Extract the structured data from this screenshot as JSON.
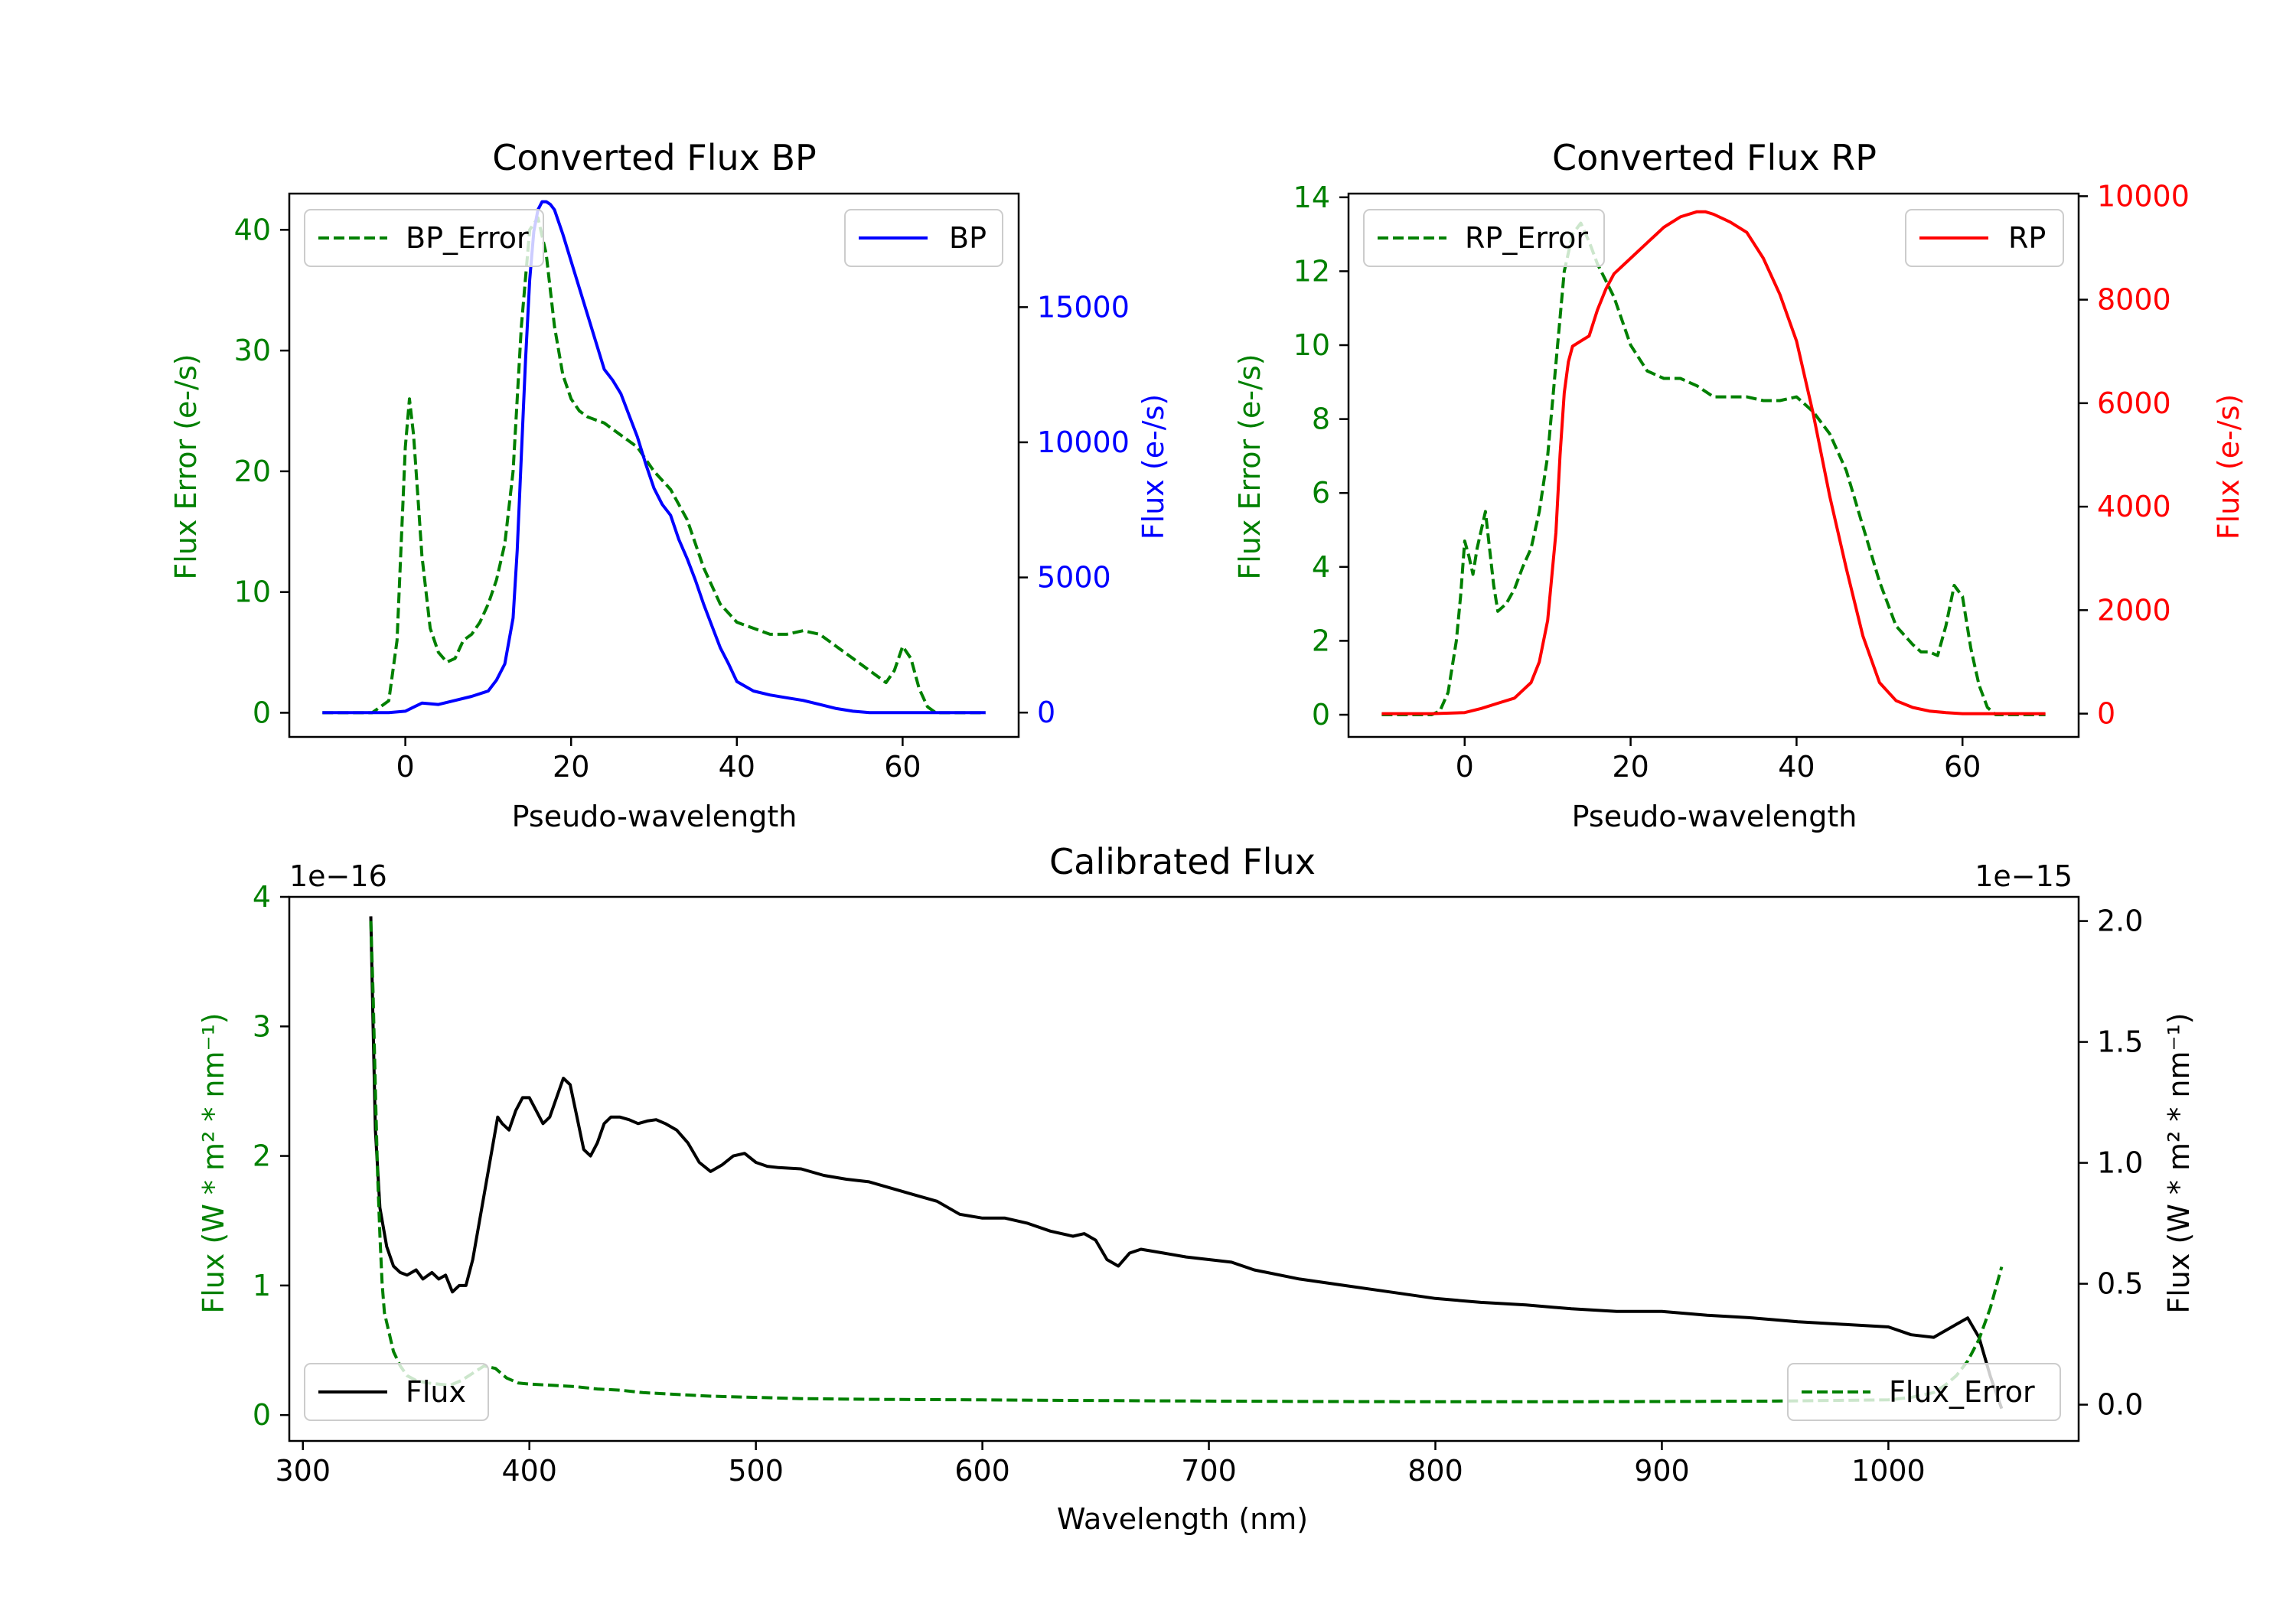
{
  "figure": {
    "panels": {
      "bp": {
        "title": "Converted Flux BP",
        "xlabel": "Pseudo-wavelength",
        "ylabel_left": "Flux Error (e-/s)",
        "ylabel_right": "Flux (e-/s)",
        "legend_left": "BP_Error",
        "legend_right": "BP"
      },
      "rp": {
        "title": "Converted Flux RP",
        "xlabel": "Pseudo-wavelength",
        "ylabel_left": "Flux Error (e-/s)",
        "ylabel_right": "Flux (e-/s)",
        "legend_left": "RP_Error",
        "legend_right": "RP"
      },
      "cal": {
        "title": "Calibrated Flux",
        "xlabel": "Wavelength (nm)",
        "ylabel_left": "Flux (W * m² * nm⁻¹)",
        "ylabel_right": "Flux (W * m² * nm⁻¹)",
        "offset_left": "1e−16",
        "offset_right": "1e−15",
        "legend_left": "Flux",
        "legend_right": "Flux_Error"
      }
    },
    "colors": {
      "bp_flux": "#0000ff",
      "rp_flux": "#ff0000",
      "error": "#008000",
      "cal_flux": "#000000",
      "axis": "#000000"
    }
  },
  "chart_data": [
    {
      "id": "bp",
      "type": "line",
      "title": "Converted Flux BP",
      "xlabel": "Pseudo-wavelength",
      "xlim": [
        -14,
        74
      ],
      "xticks": [
        0,
        20,
        40,
        60
      ],
      "y_left": {
        "label": "Flux Error (e-/s)",
        "lim": [
          -2,
          43
        ],
        "ticks": [
          0,
          10,
          20,
          30,
          40
        ],
        "tick_labels": [
          "0",
          "10",
          "20",
          "30",
          "40"
        ]
      },
      "y_right": {
        "label": "Flux (e-/s)",
        "lim": [
          -900,
          19200
        ],
        "ticks": [
          0,
          5000,
          10000,
          15000
        ],
        "tick_labels": [
          "0",
          "5000",
          "10000",
          "15000"
        ]
      },
      "series": [
        {
          "name": "BP_Error",
          "axis": "left",
          "style": "dashed",
          "color": "#008000",
          "x": [
            -10,
            -6,
            -4,
            -2,
            -1,
            0,
            0.5,
            1,
            1.5,
            2,
            3,
            4,
            5,
            6,
            7,
            8,
            9,
            10,
            11,
            12,
            13,
            14,
            15,
            16,
            17,
            18,
            19,
            20,
            21,
            22,
            24,
            26,
            28,
            30,
            32,
            34,
            36,
            38,
            40,
            42,
            44,
            46,
            48,
            50,
            52,
            54,
            56,
            58,
            59,
            60,
            61,
            62,
            63,
            64,
            66,
            68,
            70
          ],
          "y": [
            0,
            0,
            0,
            1,
            6,
            22,
            26,
            23,
            18,
            13,
            7,
            5,
            4.2,
            4.5,
            6,
            6.5,
            7.5,
            9,
            11,
            14,
            20,
            32,
            40,
            41,
            38,
            32,
            28,
            26,
            25,
            24.5,
            24,
            23,
            22,
            20,
            18.5,
            16,
            12,
            9,
            7.5,
            7,
            6.5,
            6.5,
            6.8,
            6.5,
            5.5,
            4.5,
            3.5,
            2.5,
            3.5,
            5.5,
            4.5,
            2,
            0.5,
            0,
            0,
            0,
            0
          ]
        },
        {
          "name": "BP",
          "axis": "right",
          "style": "solid",
          "color": "#0000ff",
          "x": [
            -10,
            -4,
            -2,
            0,
            1,
            2,
            4,
            6,
            8,
            10,
            11,
            12,
            13,
            13.5,
            14,
            14.5,
            15,
            15.5,
            16,
            16.5,
            17,
            17.5,
            18,
            19,
            20,
            22,
            24,
            25,
            26,
            27,
            28,
            29,
            30,
            31,
            32,
            33,
            34,
            35,
            36,
            37,
            38,
            39,
            40,
            42,
            44,
            46,
            48,
            50,
            52,
            54,
            56,
            58,
            60,
            62,
            64,
            66,
            68,
            70
          ],
          "y": [
            0,
            0,
            0,
            50,
            200,
            350,
            300,
            450,
            600,
            800,
            1200,
            1800,
            3500,
            6000,
            9500,
            13000,
            16000,
            17800,
            18600,
            18900,
            18900,
            18800,
            18600,
            17700,
            16700,
            14700,
            12700,
            12300,
            11800,
            11000,
            10200,
            9200,
            8300,
            7700,
            7300,
            6400,
            5700,
            4900,
            4000,
            3200,
            2400,
            1800,
            1150,
            800,
            650,
            550,
            450,
            300,
            150,
            50,
            0,
            0,
            0,
            0,
            0,
            0,
            0,
            0
          ]
        }
      ]
    },
    {
      "id": "rp",
      "type": "line",
      "title": "Converted Flux RP",
      "xlabel": "Pseudo-wavelength",
      "xlim": [
        -14,
        74
      ],
      "xticks": [
        0,
        20,
        40,
        60
      ],
      "y_left": {
        "label": "Flux Error (e-/s)",
        "lim": [
          -0.6,
          14.1
        ],
        "ticks": [
          0,
          2,
          4,
          6,
          8,
          10,
          12,
          14
        ],
        "tick_labels": [
          "0",
          "2",
          "4",
          "6",
          "8",
          "10",
          "12",
          "14"
        ]
      },
      "y_right": {
        "label": "Flux (e-/s)",
        "lim": [
          -450,
          10050
        ],
        "ticks": [
          0,
          2000,
          4000,
          6000,
          8000,
          10000
        ],
        "tick_labels": [
          "0",
          "2000",
          "4000",
          "6000",
          "8000",
          "10000"
        ]
      },
      "series": [
        {
          "name": "RP_Error",
          "axis": "left",
          "style": "dashed",
          "color": "#008000",
          "x": [
            -10,
            -5,
            -4,
            -3,
            -2,
            -1,
            -0.5,
            0,
            0.5,
            1,
            1.5,
            2,
            2.5,
            3,
            3.5,
            4,
            5,
            6,
            7,
            8,
            9,
            10,
            11,
            12,
            13,
            14,
            15,
            16,
            18,
            20,
            22,
            24,
            26,
            28,
            30,
            32,
            34,
            36,
            38,
            40,
            42,
            44,
            46,
            48,
            50,
            52,
            54,
            55,
            56,
            57,
            58,
            59,
            60,
            61,
            62,
            63,
            64,
            66,
            68,
            70
          ],
          "y": [
            0,
            0,
            0,
            0.1,
            0.6,
            2,
            3.2,
            4.7,
            4.3,
            3.8,
            4.5,
            5.0,
            5.5,
            4.5,
            3.5,
            2.8,
            3.0,
            3.4,
            4.0,
            4.5,
            5.5,
            7.0,
            9.5,
            12,
            13,
            13.3,
            12.8,
            12.2,
            11.3,
            10.0,
            9.3,
            9.1,
            9.1,
            8.9,
            8.6,
            8.6,
            8.6,
            8.5,
            8.5,
            8.6,
            8.2,
            7.6,
            6.6,
            5.1,
            3.6,
            2.4,
            1.9,
            1.7,
            1.7,
            1.6,
            2.4,
            3.5,
            3.2,
            1.8,
            0.8,
            0.2,
            0,
            0,
            0,
            0
          ]
        },
        {
          "name": "RP",
          "axis": "right",
          "style": "solid",
          "color": "#ff0000",
          "x": [
            -10,
            -4,
            0,
            2,
            4,
            6,
            8,
            9,
            10,
            11,
            11.5,
            12,
            12.5,
            13,
            14,
            15,
            16,
            17,
            18,
            20,
            22,
            24,
            26,
            28,
            29,
            30,
            32,
            34,
            36,
            38,
            40,
            42,
            44,
            46,
            48,
            50,
            52,
            54,
            56,
            58,
            60,
            62,
            64,
            66,
            68,
            70
          ],
          "y": [
            0,
            0,
            20,
            100,
            200,
            300,
            600,
            1000,
            1800,
            3500,
            5000,
            6200,
            6800,
            7100,
            7200,
            7300,
            7800,
            8200,
            8500,
            8800,
            9100,
            9400,
            9600,
            9700,
            9700,
            9650,
            9500,
            9300,
            8800,
            8100,
            7200,
            5800,
            4200,
            2800,
            1500,
            600,
            250,
            120,
            50,
            20,
            0,
            0,
            0,
            0,
            0,
            0
          ]
        }
      ]
    },
    {
      "id": "cal",
      "type": "line",
      "title": "Calibrated Flux",
      "xlabel": "Wavelength (nm)",
      "xlim": [
        294,
        1084
      ],
      "xticks": [
        300,
        400,
        500,
        600,
        700,
        800,
        900,
        1000
      ],
      "y_left": {
        "label": "Flux (W * m² * nm⁻¹)",
        "scale": "1e-16",
        "lim": [
          -0.2,
          4.0
        ],
        "ticks": [
          0,
          1,
          2,
          3,
          4
        ],
        "tick_labels": [
          "0",
          "1",
          "2",
          "3",
          "4"
        ]
      },
      "y_right": {
        "label": "Flux (W * m² * nm⁻¹)",
        "scale": "1e-15",
        "lim": [
          -0.15,
          2.1
        ],
        "ticks": [
          0.0,
          0.5,
          1.0,
          1.5,
          2.0
        ],
        "tick_labels": [
          "0.0",
          "0.5",
          "1.0",
          "1.5",
          "2.0"
        ]
      },
      "series": [
        {
          "name": "Flux",
          "axis": "left",
          "style": "solid",
          "color": "#000000",
          "x": [
            330,
            331,
            332,
            334,
            337,
            340,
            343,
            346,
            350,
            353,
            357,
            360,
            363,
            366,
            369,
            372,
            375,
            378,
            381,
            384,
            386,
            388,
            391,
            394,
            397,
            400,
            403,
            406,
            409,
            412,
            415,
            418,
            421,
            424,
            427,
            430,
            433,
            436,
            440,
            444,
            448,
            452,
            456,
            460,
            465,
            470,
            475,
            480,
            485,
            490,
            495,
            500,
            505,
            510,
            520,
            530,
            540,
            550,
            560,
            570,
            580,
            590,
            600,
            610,
            620,
            630,
            640,
            645,
            650,
            655,
            660,
            665,
            670,
            680,
            690,
            700,
            710,
            720,
            740,
            760,
            780,
            800,
            820,
            840,
            860,
            880,
            900,
            920,
            940,
            960,
            980,
            1000,
            1010,
            1020,
            1030,
            1035,
            1040,
            1045,
            1050
          ],
          "y": [
            3.85,
            3.0,
            2.2,
            1.6,
            1.3,
            1.15,
            1.1,
            1.08,
            1.12,
            1.05,
            1.1,
            1.05,
            1.08,
            0.95,
            1.0,
            1.0,
            1.2,
            1.5,
            1.8,
            2.1,
            2.3,
            2.25,
            2.2,
            2.35,
            2.45,
            2.45,
            2.35,
            2.25,
            2.3,
            2.45,
            2.6,
            2.55,
            2.3,
            2.05,
            2.0,
            2.1,
            2.25,
            2.3,
            2.3,
            2.28,
            2.25,
            2.27,
            2.28,
            2.25,
            2.2,
            2.1,
            1.95,
            1.88,
            1.93,
            2.0,
            2.02,
            1.95,
            1.92,
            1.91,
            1.9,
            1.85,
            1.82,
            1.8,
            1.75,
            1.7,
            1.65,
            1.55,
            1.52,
            1.52,
            1.48,
            1.42,
            1.38,
            1.4,
            1.35,
            1.2,
            1.15,
            1.25,
            1.28,
            1.25,
            1.22,
            1.2,
            1.18,
            1.12,
            1.05,
            1.0,
            0.95,
            0.9,
            0.87,
            0.85,
            0.82,
            0.8,
            0.8,
            0.77,
            0.75,
            0.72,
            0.7,
            0.68,
            0.62,
            0.6,
            0.7,
            0.75,
            0.6,
            0.3,
            0.05
          ]
        },
        {
          "name": "Flux_Error",
          "axis": "right",
          "style": "dashed",
          "color": "#008000",
          "x": [
            330,
            331,
            332,
            333,
            334,
            335,
            336,
            338,
            340,
            343,
            346,
            350,
            355,
            360,
            365,
            370,
            375,
            380,
            385,
            390,
            395,
            400,
            410,
            420,
            430,
            440,
            450,
            460,
            470,
            480,
            500,
            520,
            550,
            600,
            650,
            700,
            750,
            800,
            850,
            900,
            950,
            1000,
            1010,
            1020,
            1025,
            1030,
            1035,
            1040,
            1045,
            1050
          ],
          "y": [
            2.0,
            1.7,
            1.3,
            0.95,
            0.7,
            0.5,
            0.38,
            0.3,
            0.22,
            0.16,
            0.12,
            0.1,
            0.09,
            0.085,
            0.08,
            0.1,
            0.13,
            0.16,
            0.15,
            0.11,
            0.09,
            0.085,
            0.08,
            0.075,
            0.065,
            0.06,
            0.05,
            0.045,
            0.04,
            0.035,
            0.03,
            0.025,
            0.022,
            0.02,
            0.017,
            0.015,
            0.013,
            0.012,
            0.012,
            0.013,
            0.015,
            0.02,
            0.03,
            0.05,
            0.08,
            0.12,
            0.18,
            0.27,
            0.4,
            0.57
          ]
        }
      ]
    }
  ]
}
